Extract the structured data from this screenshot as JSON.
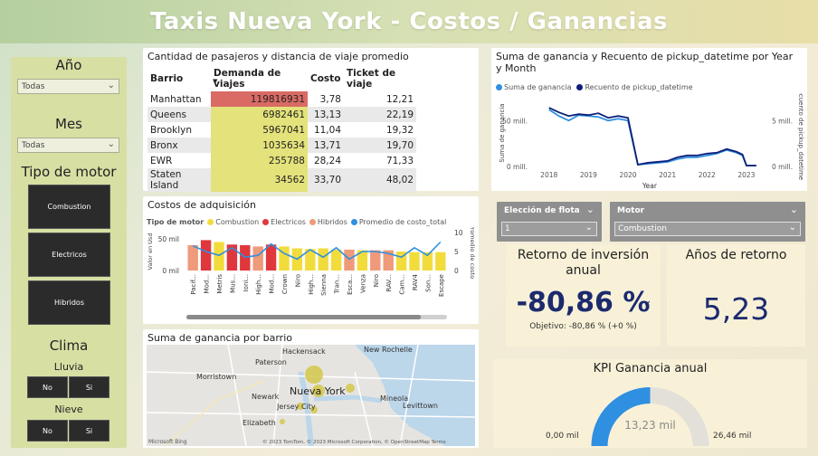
{
  "header": {
    "title": "Taxis Nueva York - Costos / Ganancias"
  },
  "sidebar": {
    "anio_label": "Año",
    "anio_value": "Todas",
    "mes_label": "Mes",
    "mes_value": "Todas",
    "motor_label": "Tipo de motor",
    "motor_buttons": [
      "Combustion",
      "Electricos",
      "Hibridos"
    ],
    "clima_label": "Clima",
    "lluvia_label": "Lluvia",
    "nieve_label": "Nieve",
    "no_label": "No",
    "si_label": "Si"
  },
  "table": {
    "title": "Cantidad de pasajeros y distancia de viaje promedio",
    "headers": [
      "Barrio",
      "Demanda de viajes",
      "Costo",
      "Ticket de viaje"
    ],
    "rows": [
      [
        "Manhattan",
        "119816931",
        "3,78",
        "12,21"
      ],
      [
        "Queens",
        "6982461",
        "13,13",
        "22,19"
      ],
      [
        "Brooklyn",
        "5967041",
        "11,04",
        "19,32"
      ],
      [
        "Bronx",
        "1035634",
        "13,71",
        "19,70"
      ],
      [
        "EWR",
        "255788",
        "28,24",
        "71,33"
      ],
      [
        "Staten Island",
        "34562",
        "33,70",
        "48,02"
      ]
    ]
  },
  "line_chart": {
    "title": "Suma de ganancia y Recuento de pickup_datetime por Year y Month",
    "legend": [
      "Suma de ganancia",
      "Recuento de pickup_datetime"
    ],
    "xlabel": "Year",
    "ylabel_left": "Suma de ganancia",
    "ylabel_right": "Recuento de pickup_datetime",
    "left_ticks": [
      "50 mill.",
      "0 mill."
    ],
    "right_ticks": [
      "5 mill.",
      "0 mill."
    ],
    "colors": {
      "ganancia": "#2f8fe0",
      "recuento": "#0d1f7a"
    }
  },
  "bar_chart": {
    "title": "Costos de adquisición",
    "legend_title": "Tipo de motor",
    "legend": [
      "Combustion",
      "Electricos",
      "Hibridos",
      "Promedio de costo_total"
    ],
    "ylabel_left": "Valor en Usd",
    "ylabel_right": "Promedio de costo",
    "left_ticks": [
      "50 mil",
      "0 mil"
    ],
    "right_ticks": [
      "10",
      "5",
      "0"
    ],
    "colors": {
      "combustion": "#f2dc3c",
      "electricos": "#e0373c",
      "hibridos": "#ef9a7a",
      "promedio": "#2f8fe0"
    }
  },
  "map": {
    "title": "Suma de ganancia por barrio",
    "labels": [
      "Hackensack",
      "New Rochelle",
      "Paterson",
      "Morristown",
      "Nueva York",
      "Newark",
      "Jersey City",
      "Mineola",
      "Levittown",
      "Elizabeth"
    ],
    "attribution": "© 2023 TomTom, © 2023 Microsoft Corporation, © OpenStreetMap  Terms",
    "brand": "Microsoft Bing"
  },
  "filters": {
    "flota_label": "Elección de flota",
    "flota_value": "1",
    "motor_label": "Motor",
    "motor_value": "Combustion"
  },
  "roi": {
    "title": "Retorno de inversión anual",
    "value": "-80,86 %",
    "target": "Objetivo: -80,86 % (+0 %)"
  },
  "anios": {
    "title": "Años de retorno",
    "value": "5,23"
  },
  "gauge": {
    "title": "KPI Ganancia anual",
    "value_label": "13,23 mil",
    "min_label": "0,00 mil",
    "max_label": "26,46 mil",
    "fraction": 0.5,
    "colors": {
      "fill": "#2f8fe0",
      "track": "#e3e0da"
    }
  },
  "chart_data": [
    {
      "type": "line",
      "title": "Suma de ganancia y Recuento de pickup_datetime por Year y Month",
      "xlabel": "Year",
      "x": [
        2018.0,
        2018.25,
        2018.5,
        2018.75,
        2019.0,
        2019.25,
        2019.5,
        2019.75,
        2020.0,
        2020.25,
        2020.5,
        2020.75,
        2021.0,
        2021.25,
        2021.5,
        2021.75,
        2022.0,
        2022.25,
        2022.5,
        2022.75,
        2022.9,
        2023.0,
        2023.25
      ],
      "series": [
        {
          "name": "Suma de ganancia",
          "values": [
            62,
            55,
            50,
            56,
            55,
            54,
            50,
            52,
            50,
            2,
            3,
            4,
            5,
            8,
            10,
            10,
            12,
            14,
            18,
            15,
            12,
            1,
            1
          ]
        },
        {
          "name": "Recuento de pickup_datetime",
          "values": [
            6.4,
            5.9,
            5.5,
            5.7,
            5.6,
            5.8,
            5.3,
            5.5,
            5.3,
            0.2,
            0.4,
            0.5,
            0.6,
            1.0,
            1.2,
            1.2,
            1.4,
            1.5,
            1.9,
            1.6,
            1.3,
            0.1,
            0.1
          ]
        }
      ],
      "x_ticks": [
        "2018",
        "2019",
        "2020",
        "2021",
        "2022",
        "2023"
      ]
    },
    {
      "type": "bar",
      "title": "Costos de adquisición",
      "categories": [
        "Pacif...",
        "Mod...",
        "Metris",
        "Mus...",
        "Ioni...",
        "High...",
        "Mod...",
        "Crown",
        "Niro",
        "High...",
        "Sienna",
        "Tran...",
        "Esca...",
        "Venza",
        "Niro",
        "RAV...",
        "Cam...",
        "RAV4",
        "Son...",
        "Escape"
      ],
      "values": [
        40,
        48,
        45,
        41,
        40,
        38,
        41,
        38,
        35,
        34,
        35,
        33,
        33,
        32,
        32,
        32,
        30,
        29,
        29,
        29
      ],
      "types": [
        "Hibridos",
        "Electricos",
        "Combustion",
        "Electricos",
        "Electricos",
        "Hibridos",
        "Electricos",
        "Combustion",
        "Combustion",
        "Combustion",
        "Combustion",
        "Combustion",
        "Hibridos",
        "Combustion",
        "Hibridos",
        "Hibridos",
        "Combustion",
        "Combustion",
        "Combustion",
        "Combustion"
      ],
      "promedio": [
        6.5,
        5.0,
        4.0,
        6.0,
        3.5,
        4.0,
        7.0,
        4.5,
        3.0,
        5.5,
        3.5,
        6.0,
        3.0,
        5.0,
        5.0,
        4.5,
        3.5,
        6.0,
        4.0,
        7.5
      ],
      "ylim": [
        0,
        60
      ],
      "y2lim": [
        0,
        10
      ]
    }
  ]
}
